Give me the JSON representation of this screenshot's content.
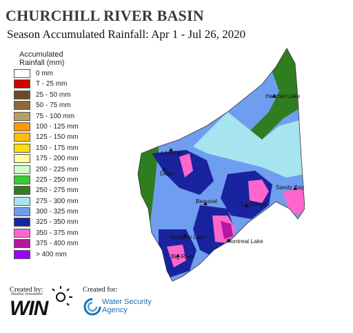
{
  "title": "CHURCHILL RIVER BASIN",
  "subtitle": "Season Accumulated Rainfall: Apr 1 - Jul 26, 2020",
  "legend": {
    "title_line1": "Accumulated",
    "title_line2": "Rainfall (mm)",
    "items": [
      {
        "label": "0 mm",
        "color": "#ffffff"
      },
      {
        "label": "T - 25 mm",
        "color": "#d40000"
      },
      {
        "label": "25 - 50 mm",
        "color": "#6b4a2a"
      },
      {
        "label": "50 - 75 mm",
        "color": "#8a6a3a"
      },
      {
        "label": "75 - 100 mm",
        "color": "#b8a060"
      },
      {
        "label": "100 - 125 mm",
        "color": "#ff9900"
      },
      {
        "label": "125 - 150 mm",
        "color": "#ffc000"
      },
      {
        "label": "150 - 175 mm",
        "color": "#ffe000"
      },
      {
        "label": "175 - 200 mm",
        "color": "#ffff99"
      },
      {
        "label": "200 - 225 mm",
        "color": "#ccffcc"
      },
      {
        "label": "225 - 250 mm",
        "color": "#33cc33"
      },
      {
        "label": "250 - 275 mm",
        "color": "#2e7d1e"
      },
      {
        "label": "275 - 300 mm",
        "color": "#a6e4f0"
      },
      {
        "label": "300 - 325 mm",
        "color": "#6f9df0"
      },
      {
        "label": "325 - 350 mm",
        "color": "#1a239e"
      },
      {
        "label": "350 - 375 mm",
        "color": "#ff66cc"
      },
      {
        "label": "375 - 400 mm",
        "color": "#b5179e"
      },
      {
        "label": "> 400 mm",
        "color": "#9d00ff"
      }
    ]
  },
  "map": {
    "places": {
      "hatchet_lake": "Hatchet Lake",
      "la_loche": "La Loche",
      "dillon": "Dillon",
      "sandy_bay": "Sandy Bay",
      "beauval": "Beauval",
      "la_ronge": "La Ronge",
      "meadow_lake": "Meadow Lake",
      "montreal_lake": "Montreal Lake",
      "big_river": "Big River"
    }
  },
  "credits": {
    "created_by": "Created by:",
    "created_for": "Created for:",
    "win_small": "Weather Innovations",
    "win": "WIN",
    "agency_line1": "Water Security",
    "agency_line2": "Agency"
  }
}
